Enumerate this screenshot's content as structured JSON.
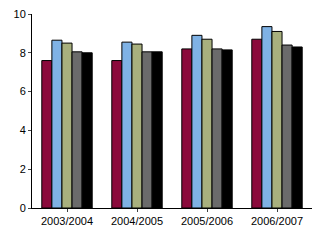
{
  "chart_data": {
    "type": "bar",
    "categories": [
      "2003/2004",
      "2004/2005",
      "2005/2006",
      "2006/2007"
    ],
    "series": [
      {
        "color": "#8b0a3c",
        "values": [
          7.6,
          7.6,
          8.2,
          8.7
        ]
      },
      {
        "color": "#7fb2e5",
        "values": [
          8.65,
          8.55,
          8.9,
          9.35
        ]
      },
      {
        "color": "#a8b07e",
        "values": [
          8.5,
          8.45,
          8.7,
          9.1
        ]
      },
      {
        "color": "#6b6b6b",
        "values": [
          8.05,
          8.05,
          8.2,
          8.4
        ]
      },
      {
        "color": "#000000",
        "values": [
          8.0,
          8.05,
          8.15,
          8.3
        ]
      }
    ],
    "ylim": [
      0,
      10
    ],
    "yticks": [
      0,
      2,
      4,
      6,
      8,
      10
    ],
    "grid": false
  }
}
